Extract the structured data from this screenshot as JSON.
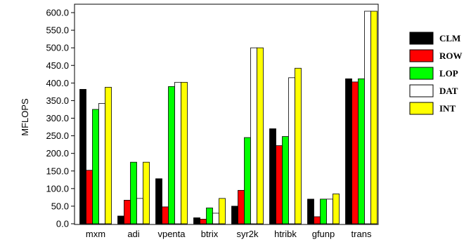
{
  "chart_data": {
    "type": "bar",
    "title": "",
    "xlabel": "",
    "ylabel": "MFLOPS",
    "ylim": [
      0,
      600
    ],
    "yticks": [
      "0.0",
      "50.0",
      "100.0",
      "150.0",
      "200.0",
      "250.0",
      "300.0",
      "350.0",
      "400.0",
      "450.0",
      "500.0",
      "550.0",
      "600.0"
    ],
    "grid": false,
    "legend_position": "right",
    "categories": [
      "mxm",
      "adi",
      "vpenta",
      "btrix",
      "syr2k",
      "htribk",
      "gfunp",
      "trans"
    ],
    "series": [
      {
        "name": "CLM",
        "color": "#000000",
        "values": [
          382,
          22,
          128,
          17,
          50,
          270,
          70,
          412
        ]
      },
      {
        "name": "ROW",
        "color": "#ff0000",
        "values": [
          152,
          67,
          48,
          13,
          95,
          222,
          20,
          403
        ]
      },
      {
        "name": "LOP",
        "color": "#00ff00",
        "values": [
          325,
          175,
          390,
          45,
          245,
          248,
          70,
          412
        ]
      },
      {
        "name": "DAT",
        "color": "#ffffff",
        "values": [
          342,
          72,
          402,
          30,
          500,
          415,
          70,
          604
        ]
      },
      {
        "name": "INT",
        "color": "#ffff00",
        "values": [
          388,
          175,
          402,
          72,
          500,
          442,
          85,
          604
        ]
      }
    ]
  }
}
